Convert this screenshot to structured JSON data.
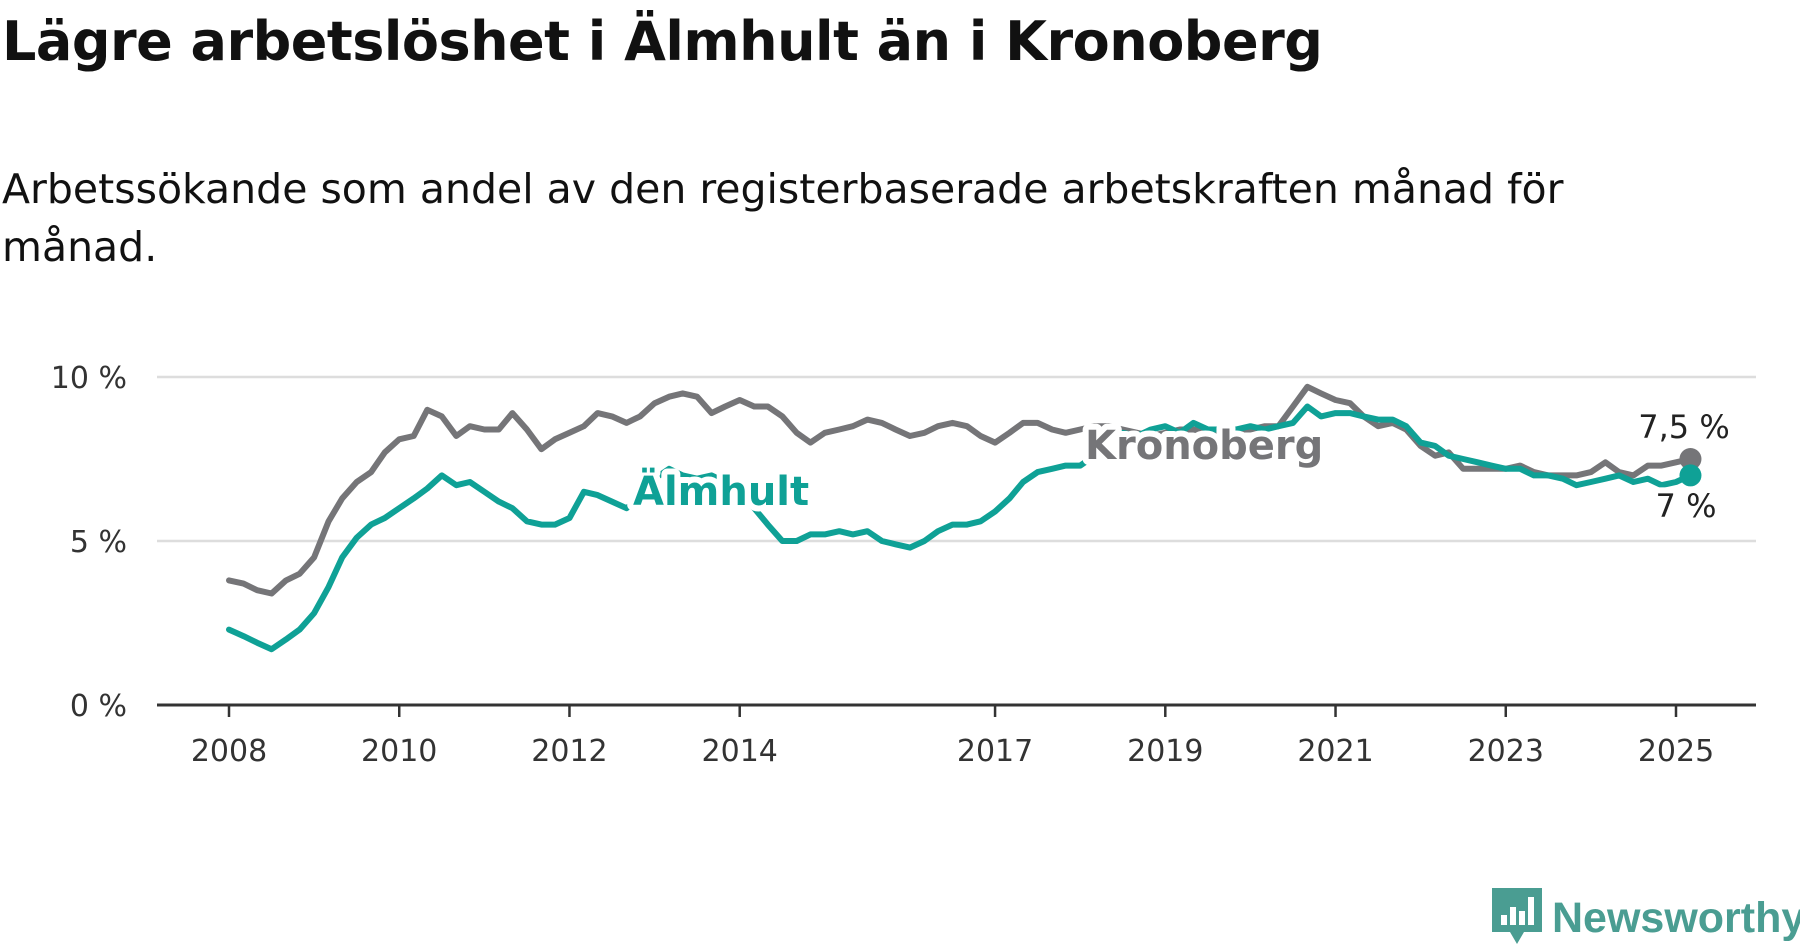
{
  "title": "Lägre arbetslöshet i Älmhult än i Kronoberg",
  "subtitle": "Arbetssökande som andel av den registerbaserade arbetskraften månad för månad.",
  "logo": {
    "text": "Newsworthy",
    "icon": "newsworthy-bar-chart-icon"
  },
  "colors": {
    "almhult": "#0fa196",
    "kronoberg": "#757578",
    "grid": "#dddddd",
    "axis": "#333333"
  },
  "chart_data": {
    "type": "line",
    "x_unit": "year",
    "xlim": [
      2008,
      2026
    ],
    "ylim": [
      0,
      10
    ],
    "y_ticks": [
      0,
      5,
      10
    ],
    "y_tick_labels": [
      "0 %",
      "5 %",
      "10 %"
    ],
    "x_ticks": [
      2008,
      2010,
      2012,
      2014,
      2017,
      2019,
      2021,
      2023,
      2025
    ],
    "x_tick_labels": [
      "2008",
      "2010",
      "2012",
      "2014",
      "2017",
      "2019",
      "2021",
      "2023",
      "2025"
    ],
    "grid": "horizontal",
    "legend": "inline labels",
    "series": [
      {
        "key": "kronoberg",
        "name": "Kronoberg",
        "end_label": "7,5 %",
        "points": [
          [
            2008,
            3.8
          ],
          [
            2008.17,
            3.7
          ],
          [
            2008.33,
            3.5
          ],
          [
            2008.5,
            3.4
          ],
          [
            2008.67,
            3.8
          ],
          [
            2008.83,
            4.0
          ],
          [
            2009,
            4.5
          ],
          [
            2009.17,
            5.6
          ],
          [
            2009.33,
            6.3
          ],
          [
            2009.5,
            6.8
          ],
          [
            2009.67,
            7.1
          ],
          [
            2009.83,
            7.7
          ],
          [
            2010,
            8.1
          ],
          [
            2010.17,
            8.2
          ],
          [
            2010.33,
            9.0
          ],
          [
            2010.5,
            8.8
          ],
          [
            2010.67,
            8.2
          ],
          [
            2010.83,
            8.5
          ],
          [
            2011,
            8.4
          ],
          [
            2011.17,
            8.4
          ],
          [
            2011.33,
            8.9
          ],
          [
            2011.5,
            8.4
          ],
          [
            2011.67,
            7.8
          ],
          [
            2011.83,
            8.1
          ],
          [
            2012,
            8.3
          ],
          [
            2012.17,
            8.5
          ],
          [
            2012.33,
            8.9
          ],
          [
            2012.5,
            8.8
          ],
          [
            2012.67,
            8.6
          ],
          [
            2012.83,
            8.8
          ],
          [
            2013,
            9.2
          ],
          [
            2013.17,
            9.4
          ],
          [
            2013.33,
            9.5
          ],
          [
            2013.5,
            9.4
          ],
          [
            2013.67,
            8.9
          ],
          [
            2013.83,
            9.1
          ],
          [
            2014,
            9.3
          ],
          [
            2014.17,
            9.1
          ],
          [
            2014.33,
            9.1
          ],
          [
            2014.5,
            8.8
          ],
          [
            2014.67,
            8.3
          ],
          [
            2014.83,
            8.0
          ],
          [
            2015,
            8.3
          ],
          [
            2015.17,
            8.4
          ],
          [
            2015.33,
            8.5
          ],
          [
            2015.5,
            8.7
          ],
          [
            2015.67,
            8.6
          ],
          [
            2015.83,
            8.4
          ],
          [
            2016,
            8.2
          ],
          [
            2016.17,
            8.3
          ],
          [
            2016.33,
            8.5
          ],
          [
            2016.5,
            8.6
          ],
          [
            2016.67,
            8.5
          ],
          [
            2016.83,
            8.2
          ],
          [
            2017,
            8.0
          ],
          [
            2017.17,
            8.3
          ],
          [
            2017.33,
            8.6
          ],
          [
            2017.5,
            8.6
          ],
          [
            2017.67,
            8.4
          ],
          [
            2017.83,
            8.3
          ],
          [
            2018,
            8.4
          ],
          [
            2018.17,
            8.5
          ],
          [
            2018.33,
            8.5
          ],
          [
            2018.5,
            8.4
          ],
          [
            2018.67,
            8.3
          ],
          [
            2018.83,
            8.2
          ],
          [
            2019,
            8.3
          ],
          [
            2019.17,
            8.4
          ],
          [
            2019.33,
            8.4
          ],
          [
            2019.5,
            8.3
          ],
          [
            2019.67,
            8.3
          ],
          [
            2019.83,
            8.4
          ],
          [
            2020,
            8.4
          ],
          [
            2020.17,
            8.5
          ],
          [
            2020.33,
            8.5
          ],
          [
            2020.5,
            9.1
          ],
          [
            2020.67,
            9.7
          ],
          [
            2020.83,
            9.5
          ],
          [
            2021,
            9.3
          ],
          [
            2021.17,
            9.2
          ],
          [
            2021.33,
            8.8
          ],
          [
            2021.5,
            8.5
          ],
          [
            2021.67,
            8.6
          ],
          [
            2021.83,
            8.4
          ],
          [
            2022,
            7.9
          ],
          [
            2022.17,
            7.6
          ],
          [
            2022.33,
            7.7
          ],
          [
            2022.5,
            7.2
          ],
          [
            2022.67,
            7.2
          ],
          [
            2022.83,
            7.2
          ],
          [
            2023,
            7.2
          ],
          [
            2023.17,
            7.3
          ],
          [
            2023.33,
            7.1
          ],
          [
            2023.5,
            7.0
          ],
          [
            2023.67,
            7.0
          ],
          [
            2023.83,
            7.0
          ],
          [
            2024,
            7.1
          ],
          [
            2024.17,
            7.4
          ],
          [
            2024.33,
            7.1
          ],
          [
            2024.5,
            7.0
          ],
          [
            2024.67,
            7.3
          ],
          [
            2024.83,
            7.3
          ],
          [
            2025,
            7.4
          ],
          [
            2025.17,
            7.5
          ]
        ]
      },
      {
        "key": "almhult",
        "name": "Älmhult",
        "end_label": "7 %",
        "points": [
          [
            2008,
            2.3
          ],
          [
            2008.17,
            2.1
          ],
          [
            2008.33,
            1.9
          ],
          [
            2008.5,
            1.7
          ],
          [
            2008.67,
            2.0
          ],
          [
            2008.83,
            2.3
          ],
          [
            2009,
            2.8
          ],
          [
            2009.17,
            3.6
          ],
          [
            2009.33,
            4.5
          ],
          [
            2009.5,
            5.1
          ],
          [
            2009.67,
            5.5
          ],
          [
            2009.83,
            5.7
          ],
          [
            2010,
            6.0
          ],
          [
            2010.17,
            6.3
          ],
          [
            2010.33,
            6.6
          ],
          [
            2010.5,
            7.0
          ],
          [
            2010.67,
            6.7
          ],
          [
            2010.83,
            6.8
          ],
          [
            2011,
            6.5
          ],
          [
            2011.17,
            6.2
          ],
          [
            2011.33,
            6.0
          ],
          [
            2011.5,
            5.6
          ],
          [
            2011.67,
            5.5
          ],
          [
            2011.83,
            5.5
          ],
          [
            2012,
            5.7
          ],
          [
            2012.17,
            6.5
          ],
          [
            2012.33,
            6.4
          ],
          [
            2012.5,
            6.2
          ],
          [
            2012.67,
            6.0
          ],
          [
            2012.83,
            6.3
          ],
          [
            2013,
            6.9
          ],
          [
            2013.17,
            7.2
          ],
          [
            2013.33,
            7.0
          ],
          [
            2013.5,
            6.9
          ],
          [
            2013.67,
            7.0
          ],
          [
            2013.83,
            6.8
          ],
          [
            2014,
            6.4
          ],
          [
            2014.17,
            6.0
          ],
          [
            2014.33,
            5.5
          ],
          [
            2014.5,
            5.0
          ],
          [
            2014.67,
            5.0
          ],
          [
            2014.83,
            5.2
          ],
          [
            2015,
            5.2
          ],
          [
            2015.17,
            5.3
          ],
          [
            2015.33,
            5.2
          ],
          [
            2015.5,
            5.3
          ],
          [
            2015.67,
            5.0
          ],
          [
            2015.83,
            4.9
          ],
          [
            2016,
            4.8
          ],
          [
            2016.17,
            5.0
          ],
          [
            2016.33,
            5.3
          ],
          [
            2016.5,
            5.5
          ],
          [
            2016.67,
            5.5
          ],
          [
            2016.83,
            5.6
          ],
          [
            2017,
            5.9
          ],
          [
            2017.17,
            6.3
          ],
          [
            2017.33,
            6.8
          ],
          [
            2017.5,
            7.1
          ],
          [
            2017.67,
            7.2
          ],
          [
            2017.83,
            7.3
          ],
          [
            2018,
            7.3
          ],
          [
            2018.17,
            7.6
          ],
          [
            2018.33,
            8.1
          ],
          [
            2018.5,
            8.3
          ],
          [
            2018.67,
            8.2
          ],
          [
            2018.83,
            8.4
          ],
          [
            2019,
            8.5
          ],
          [
            2019.17,
            8.3
          ],
          [
            2019.33,
            8.6
          ],
          [
            2019.5,
            8.4
          ],
          [
            2019.67,
            8.4
          ],
          [
            2019.83,
            8.4
          ],
          [
            2020,
            8.5
          ],
          [
            2020.17,
            8.4
          ],
          [
            2020.33,
            8.5
          ],
          [
            2020.5,
            8.6
          ],
          [
            2020.67,
            9.1
          ],
          [
            2020.83,
            8.8
          ],
          [
            2021,
            8.9
          ],
          [
            2021.17,
            8.9
          ],
          [
            2021.33,
            8.8
          ],
          [
            2021.5,
            8.7
          ],
          [
            2021.67,
            8.7
          ],
          [
            2021.83,
            8.5
          ],
          [
            2022,
            8.0
          ],
          [
            2022.17,
            7.9
          ],
          [
            2022.33,
            7.6
          ],
          [
            2022.5,
            7.5
          ],
          [
            2022.67,
            7.4
          ],
          [
            2022.83,
            7.3
          ],
          [
            2023,
            7.2
          ],
          [
            2023.17,
            7.2
          ],
          [
            2023.33,
            7.0
          ],
          [
            2023.5,
            7.0
          ],
          [
            2023.67,
            6.9
          ],
          [
            2023.83,
            6.7
          ],
          [
            2024,
            6.8
          ],
          [
            2024.17,
            6.9
          ],
          [
            2024.33,
            7.0
          ],
          [
            2024.5,
            6.8
          ],
          [
            2024.67,
            6.9
          ],
          [
            2024.83,
            6.7
          ],
          [
            2025,
            6.8
          ],
          [
            2025.17,
            7.0
          ]
        ]
      }
    ]
  }
}
